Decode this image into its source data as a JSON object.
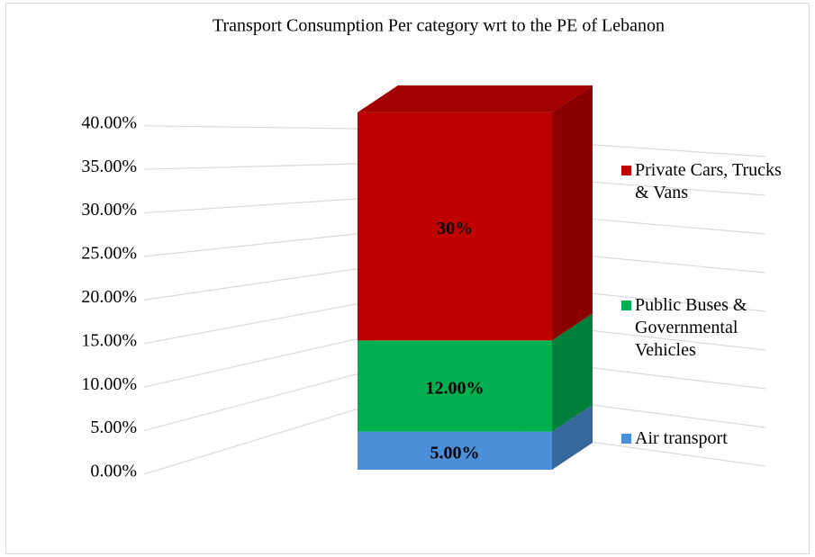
{
  "chart_data": {
    "type": "bar3d_stacked",
    "title": "Transport Consumption Per category wrt to the PE of Lebanon",
    "categories": [
      null
    ],
    "series": [
      {
        "name": "Air transport",
        "color": "#4a8fd8",
        "values": [
          5
        ],
        "value_labels": [
          "5.00%"
        ]
      },
      {
        "name": "Public Buses & Governmental Vehicles",
        "color": "#00b050",
        "values": [
          12
        ],
        "value_labels": [
          "12.00%"
        ]
      },
      {
        "name": "Private Cars, Trucks & Vans",
        "color": "#c00000",
        "values": [
          30
        ],
        "value_labels": [
          "30%"
        ]
      }
    ],
    "ylim": [
      0,
      50
    ],
    "yticks": [
      {
        "value": 0,
        "label": "0.00%"
      },
      {
        "value": 5,
        "label": "5.00%"
      },
      {
        "value": 10,
        "label": "10.00%"
      },
      {
        "value": 15,
        "label": "15.00%"
      },
      {
        "value": 20,
        "label": "20.00%"
      },
      {
        "value": 25,
        "label": "25.00%"
      },
      {
        "value": 30,
        "label": "30.00%"
      },
      {
        "value": 35,
        "label": "35.00%"
      },
      {
        "value": 40,
        "label": "40.00%"
      }
    ],
    "grid": true,
    "legend": "right"
  }
}
